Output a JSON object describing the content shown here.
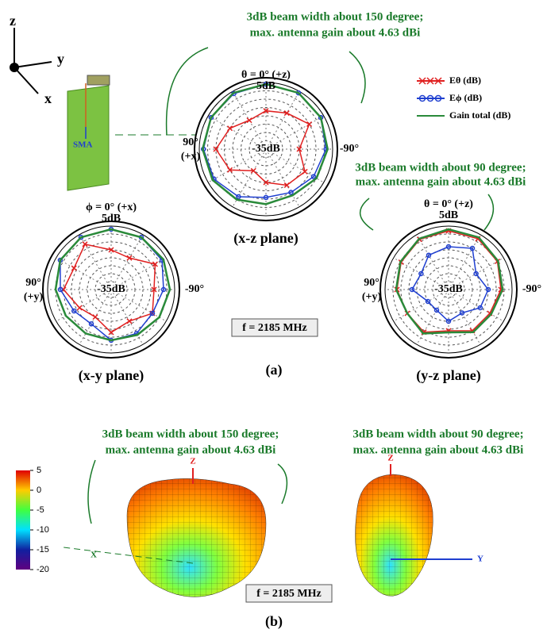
{
  "chart_data": [
    {
      "type": "polar",
      "title": "(x-z plane)",
      "angle_top": "θ = 0° (+z)",
      "angle_left": [
        "90°",
        "(+x)"
      ],
      "angle_right": "-90°",
      "rlim": [
        -35,
        5
      ],
      "rticks": [
        {
          "value": -35,
          "label": "-35dB"
        },
        {
          "value": 5,
          "label": "5dB"
        }
      ],
      "rgrid": [
        -30,
        -25,
        -20,
        -15,
        -10,
        -5,
        0
      ],
      "x": [
        0,
        30,
        60,
        90,
        120,
        150,
        180,
        210,
        240,
        270,
        300,
        330
      ],
      "series": [
        {
          "name": "Eθ (dB)",
          "color": "#e02020",
          "marker": "x",
          "values": [
            -12,
            -15,
            -10,
            -5,
            -10,
            -20,
            -15,
            -10,
            -8,
            -15,
            -5,
            -10
          ]
        },
        {
          "name": "Eϕ (dB)",
          "color": "#1f3fd0",
          "marker": "o",
          "values": [
            4,
            3.5,
            3,
            2.5,
            1,
            -2,
            -6,
            -5,
            -2,
            1,
            3,
            4
          ]
        },
        {
          "name": "Gain total (dB)",
          "color": "#2a8a3a",
          "marker": "none",
          "values": [
            4,
            4,
            3,
            3,
            2,
            0,
            -2,
            -3,
            0,
            2,
            3,
            4
          ]
        }
      ]
    },
    {
      "type": "polar",
      "title": "(x-y plane)",
      "angle_top": "ϕ = 0° (+x)",
      "angle_left": [
        "90°",
        "(+y)"
      ],
      "angle_right": "-90°",
      "rlim": [
        -35,
        5
      ],
      "rticks": [
        {
          "value": -35,
          "label": "-35dB"
        },
        {
          "value": 5,
          "label": "5dB"
        }
      ],
      "rgrid": [
        -30,
        -25,
        -20,
        -15,
        -10,
        -5,
        0
      ],
      "x": [
        0,
        30,
        60,
        90,
        120,
        150,
        180,
        210,
        240,
        270,
        300,
        330
      ],
      "series": [
        {
          "name": "Eθ (dB)",
          "color": "#e02020",
          "marker": "x",
          "values": [
            -10,
            -2,
            -8,
            -5,
            -12,
            -15,
            -8,
            -12,
            -5,
            -8,
            -3,
            -12
          ]
        },
        {
          "name": "Eϕ (dB)",
          "color": "#1f3fd0",
          "marker": "o",
          "values": [
            3,
            3,
            2,
            -3,
            -8,
            -10,
            -3,
            -3,
            -5,
            -2,
            2,
            3
          ]
        },
        {
          "name": "Gain total (dB)",
          "color": "#2a8a3a",
          "marker": "none",
          "values": [
            3,
            3,
            2,
            0,
            -2,
            -3,
            -3,
            -2,
            0,
            2,
            3,
            3
          ]
        }
      ]
    },
    {
      "type": "polar",
      "title": "(y-z plane)",
      "angle_top": "θ = 0° (+z)",
      "angle_left": [
        "90°",
        "(+y)"
      ],
      "angle_right": "-90°",
      "rlim": [
        -35,
        5
      ],
      "rticks": [
        {
          "value": -35,
          "label": "-35dB"
        },
        {
          "value": 5,
          "label": "5dB"
        }
      ],
      "rgrid": [
        -30,
        -25,
        -20,
        -15,
        -10,
        -5,
        0
      ],
      "x": [
        0,
        30,
        60,
        90,
        120,
        150,
        180,
        210,
        240,
        270,
        300,
        330
      ],
      "series": [
        {
          "name": "Eθ (dB)",
          "color": "#e02020",
          "marker": "x",
          "values": [
            2,
            1.5,
            -0.5,
            -2.5,
            -5,
            -4,
            -9,
            -5,
            -5,
            -2,
            0.5,
            2
          ]
        },
        {
          "name": "Eϕ (dB)",
          "color": "#1f3fd0",
          "marker": "o",
          "values": [
            -8,
            -10,
            -15,
            -12,
            -20,
            -20,
            -15,
            -18,
            -12,
            -10,
            -15,
            -5
          ]
        },
        {
          "name": "Gain total (dB)",
          "color": "#2a8a3a",
          "marker": "none",
          "values": [
            3,
            2,
            0,
            -2,
            -5,
            -3,
            -8,
            -4,
            -4,
            -1,
            1,
            3
          ]
        }
      ]
    }
  ],
  "figure": {
    "axes_icon": {
      "z": "z",
      "y": "y",
      "x": "x"
    },
    "antenna_port": "SMA",
    "annotation_a1": [
      "3dB beam width about 150 degree;",
      "max. antenna gain about 4.63 dBi"
    ],
    "annotation_a2": [
      "3dB beam width about 90 degree;",
      "max. antenna gain about 4.63 dBi"
    ],
    "frequency_a": "f = 2185 MHz",
    "panel_a": "(a)",
    "annotation_b1": [
      "3dB beam width about 150 degree;",
      "max. antenna gain about 4.63 dBi"
    ],
    "annotation_b2": [
      "3dB beam width about 90 degree;",
      "max. antenna gain about 4.63 dBi"
    ],
    "pattern_3d_left_axes": [
      "Z",
      "X"
    ],
    "pattern_3d_right_axes": [
      "Z",
      "Y"
    ],
    "frequency_b": "f = 2185 MHz",
    "panel_b": "(b)",
    "colorbar": {
      "lim": [
        -20,
        5
      ],
      "ticks": [
        5,
        0,
        -5,
        -10,
        -15,
        -20
      ]
    }
  }
}
